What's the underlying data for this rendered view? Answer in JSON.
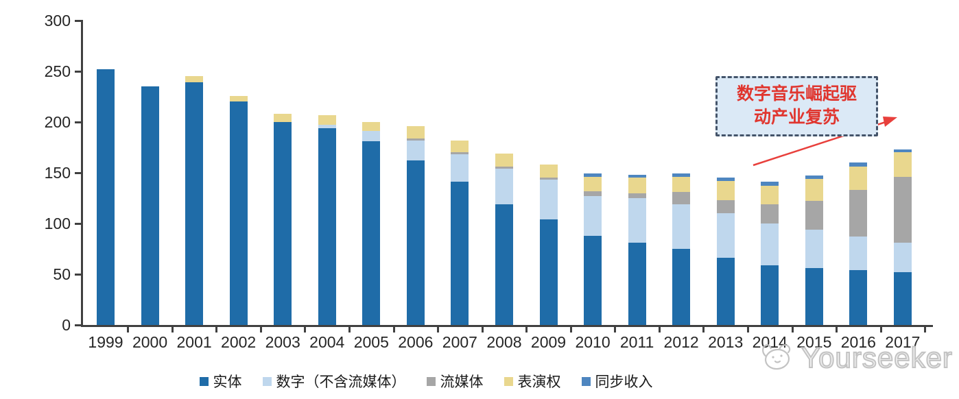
{
  "chart_data": {
    "type": "bar",
    "stacked": true,
    "title": "",
    "xlabel": "",
    "ylabel": "",
    "ylim": [
      0,
      300
    ],
    "y_ticks": [
      300,
      250,
      200,
      150,
      100,
      50,
      0
    ],
    "grid": false,
    "legend_position": "bottom",
    "categories": [
      "1999",
      "2000",
      "2001",
      "2002",
      "2003",
      "2004",
      "2005",
      "2006",
      "2007",
      "2008",
      "2009",
      "2010",
      "2011",
      "2012",
      "2013",
      "2014",
      "2015",
      "2016",
      "2017"
    ],
    "series": [
      {
        "name": "实体",
        "name_en": "physical",
        "color": "#1F6CA8",
        "values": [
          252,
          235,
          239,
          220,
          200,
          194,
          181,
          162,
          141,
          119,
          104,
          88,
          81,
          75,
          66,
          59,
          56,
          54,
          52
        ]
      },
      {
        "name": "数字（不含流媒体）",
        "name_en": "digital-excl-streaming",
        "color": "#BFD7ED",
        "values": [
          0,
          0,
          0,
          0,
          0,
          3,
          10,
          20,
          27,
          35,
          39,
          39,
          44,
          44,
          44,
          41,
          38,
          33,
          29
        ]
      },
      {
        "name": "流媒体",
        "name_en": "streaming",
        "color": "#A6A6A6",
        "values": [
          0,
          0,
          0,
          0,
          0,
          0,
          0,
          2,
          2,
          2,
          2,
          5,
          5,
          12,
          13,
          19,
          28,
          46,
          65
        ]
      },
      {
        "name": "表演权",
        "name_en": "performance-rights",
        "color": "#E9D78E",
        "values": [
          0,
          0,
          6,
          6,
          8,
          10,
          9,
          12,
          12,
          13,
          13,
          14,
          15,
          15,
          19,
          18,
          22,
          23,
          24
        ]
      },
      {
        "name": "同步收入",
        "name_en": "sync-revenue",
        "color": "#4E86C0",
        "values": [
          0,
          0,
          0,
          0,
          0,
          0,
          0,
          0,
          0,
          0,
          0,
          3,
          3,
          3,
          3,
          4,
          3,
          4,
          3
        ]
      }
    ]
  },
  "annotation": {
    "line1": "数字音乐崛起驱",
    "line2": "动产业复苏",
    "text_color": "#E0362F",
    "border_color": "#44546A",
    "fill_color": "#DBE9F6",
    "arrow_color": "#E8403C"
  },
  "watermark": {
    "text": "Yourseeker"
  }
}
